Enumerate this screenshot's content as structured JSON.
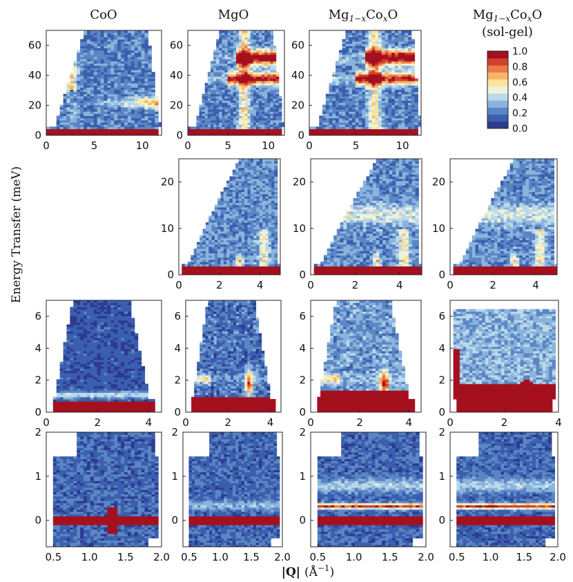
{
  "figure": {
    "column_titles": [
      "CoO",
      "MgO",
      "Mg",
      "Mg"
    ],
    "column_title_parts": {
      "c3_sub": "1−x",
      "c3_mid": "Co",
      "c3_sub2": "x",
      "c3_end": "O",
      "c4_sub": "1−x",
      "c4_mid": "Co",
      "c4_sub2": "x",
      "c4_end": "O",
      "c4_note": "(sol-gel)"
    },
    "ylabel": "Energy Transfer (meV)",
    "xlabel_prefix": "|Q|",
    "xlabel_unit": "(Å",
    "xlabel_exp": "−1",
    "xlabel_close": ")"
  },
  "colorbar": {
    "ticks": [
      "1.0",
      "0.8",
      "0.6",
      "0.4",
      "0.2",
      "0.0"
    ],
    "colors": [
      "#2c3a8f",
      "#3a5fae",
      "#5b86c4",
      "#8ab4dc",
      "#bcd9ea",
      "#eef2d8",
      "#fbe39a",
      "#f8b46a",
      "#ea7a47",
      "#d2402f",
      "#a5101f"
    ]
  },
  "chart_data": [
    {
      "type": "heatmap",
      "row": 1,
      "col": 1,
      "sample": "CoO",
      "xlim": [
        0,
        12
      ],
      "ylim": [
        0,
        70
      ],
      "xticks": [
        0,
        5,
        10
      ],
      "yticks": [
        0,
        20,
        40,
        60
      ],
      "xtick_labels": [
        "0",
        "5",
        "10"
      ],
      "ytick_labels": [
        "0",
        "20",
        "40",
        "60"
      ],
      "clim": [
        0,
        1
      ]
    },
    {
      "type": "heatmap",
      "row": 1,
      "col": 2,
      "sample": "MgO",
      "xlim": [
        0,
        12
      ],
      "ylim": [
        0,
        70
      ],
      "xticks": [
        0,
        5,
        10
      ],
      "yticks": [
        0,
        20,
        40,
        60
      ],
      "xtick_labels": [
        "0",
        "5",
        "10"
      ],
      "ytick_labels": [
        "0",
        "20",
        "40",
        "60"
      ],
      "clim": [
        0,
        1
      ]
    },
    {
      "type": "heatmap",
      "row": 1,
      "col": 3,
      "sample": "Mg1-xCoxO",
      "xlim": [
        0,
        12
      ],
      "ylim": [
        0,
        70
      ],
      "xticks": [
        0,
        5,
        10
      ],
      "yticks": [
        0,
        20,
        40,
        60
      ],
      "xtick_labels": [
        "0",
        "5",
        "10"
      ],
      "ytick_labels": [
        "0",
        "20",
        "40",
        "60"
      ],
      "clim": [
        0,
        1
      ]
    },
    {
      "type": "heatmap",
      "row": 2,
      "col": 2,
      "sample": "MgO",
      "xlim": [
        0,
        5
      ],
      "ylim": [
        0,
        25
      ],
      "xticks": [
        0,
        2,
        4
      ],
      "yticks": [
        0,
        10,
        20
      ],
      "xtick_labels": [
        "0",
        "2",
        "4"
      ],
      "ytick_labels": [
        "0",
        "10",
        "20"
      ],
      "clim": [
        0,
        1
      ]
    },
    {
      "type": "heatmap",
      "row": 2,
      "col": 3,
      "sample": "Mg1-xCoxO",
      "xlim": [
        0,
        5
      ],
      "ylim": [
        0,
        25
      ],
      "xticks": [
        0,
        2,
        4
      ],
      "yticks": [
        0,
        10,
        20
      ],
      "xtick_labels": [
        "0",
        "2",
        "4"
      ],
      "ytick_labels": [
        "0",
        "10",
        "20"
      ],
      "clim": [
        0,
        1
      ]
    },
    {
      "type": "heatmap",
      "row": 2,
      "col": 4,
      "sample": "Mg1-xCoxO (sol-gel)",
      "xlim": [
        0,
        5
      ],
      "ylim": [
        0,
        25
      ],
      "xticks": [
        0,
        2,
        4
      ],
      "yticks": [
        0,
        10,
        20
      ],
      "xtick_labels": [
        "0",
        "2",
        "4"
      ],
      "ytick_labels": [
        "0",
        "10",
        "20"
      ],
      "clim": [
        0,
        1
      ]
    },
    {
      "type": "heatmap",
      "row": 3,
      "col": 1,
      "sample": "CoO",
      "xlim": [
        0,
        4.5
      ],
      "ylim": [
        0,
        7
      ],
      "xticks": [
        0,
        2,
        4
      ],
      "yticks": [
        0,
        2,
        4,
        6
      ],
      "xtick_labels": [
        "0",
        "2",
        "4"
      ],
      "ytick_labels": [
        "0",
        "2",
        "4",
        "6"
      ],
      "clim": [
        0,
        1
      ]
    },
    {
      "type": "heatmap",
      "row": 3,
      "col": 2,
      "sample": "MgO",
      "xlim": [
        0,
        4.5
      ],
      "ylim": [
        0,
        7
      ],
      "xticks": [
        0,
        2,
        4
      ],
      "yticks": [
        0,
        2,
        4,
        6
      ],
      "xtick_labels": [
        "0",
        "2",
        "4"
      ],
      "ytick_labels": [
        "0",
        "2",
        "4",
        "6"
      ],
      "clim": [
        0,
        1
      ]
    },
    {
      "type": "heatmap",
      "row": 3,
      "col": 3,
      "sample": "Mg1-xCoxO",
      "xlim": [
        0,
        4.5
      ],
      "ylim": [
        0,
        7
      ],
      "xticks": [
        0,
        2,
        4
      ],
      "yticks": [
        0,
        2,
        4,
        6
      ],
      "xtick_labels": [
        "0",
        "2",
        "4"
      ],
      "ytick_labels": [
        "0",
        "2",
        "4",
        "6"
      ],
      "clim": [
        0,
        1
      ]
    },
    {
      "type": "heatmap",
      "row": 3,
      "col": 4,
      "sample": "Mg1-xCoxO (sol-gel)",
      "xlim": [
        0,
        4
      ],
      "ylim": [
        0,
        7
      ],
      "xticks": [
        0,
        2,
        4
      ],
      "yticks": [
        0,
        2,
        4,
        6
      ],
      "xtick_labels": [
        "0",
        "2",
        "4"
      ],
      "ytick_labels": [
        "0",
        "2",
        "4",
        "6"
      ],
      "clim": [
        0,
        1
      ]
    },
    {
      "type": "heatmap",
      "row": 4,
      "col": 1,
      "sample": "CoO",
      "xlim": [
        0.4,
        2.0
      ],
      "ylim": [
        -0.6,
        2.0
      ],
      "xticks": [
        0.5,
        1.0,
        1.5,
        2.0
      ],
      "yticks": [
        0,
        1,
        2
      ],
      "xtick_labels": [
        "0.5",
        "1.0",
        "1.5",
        "2.0"
      ],
      "ytick_labels": [
        "0",
        "1",
        "2"
      ],
      "clim": [
        0,
        1
      ]
    },
    {
      "type": "heatmap",
      "row": 4,
      "col": 2,
      "sample": "MgO",
      "xlim": [
        0.4,
        2.0
      ],
      "ylim": [
        -0.6,
        2.0
      ],
      "xticks": [
        0.5,
        1.0,
        1.5,
        2.0
      ],
      "yticks": [
        0,
        1,
        2
      ],
      "xtick_labels": [
        "0.5",
        "1.0",
        "1.5",
        "2.0"
      ],
      "ytick_labels": [
        "0",
        "1",
        "2"
      ],
      "clim": [
        0,
        1
      ]
    },
    {
      "type": "heatmap",
      "row": 4,
      "col": 3,
      "sample": "Mg1-xCoxO",
      "xlim": [
        0.4,
        2.0
      ],
      "ylim": [
        -0.6,
        2.0
      ],
      "xticks": [
        0.5,
        1.0,
        1.5,
        2.0
      ],
      "yticks": [
        0,
        1,
        2
      ],
      "xtick_labels": [
        "0.5",
        "1.0",
        "1.5",
        "2.0"
      ],
      "ytick_labels": [
        "0",
        "1",
        "2"
      ],
      "clim": [
        0,
        1
      ]
    },
    {
      "type": "heatmap",
      "row": 4,
      "col": 4,
      "sample": "Mg1-xCoxO (sol-gel)",
      "xlim": [
        0.4,
        2.0
      ],
      "ylim": [
        -0.6,
        2.0
      ],
      "xticks": [
        0.5,
        1.0,
        1.5,
        2.0
      ],
      "yticks": [
        0,
        1,
        2
      ],
      "xtick_labels": [
        "0.5",
        "1.0",
        "1.5",
        "2.0"
      ],
      "ytick_labels": [
        "0",
        "1",
        "2"
      ],
      "clim": [
        0,
        1
      ]
    }
  ]
}
